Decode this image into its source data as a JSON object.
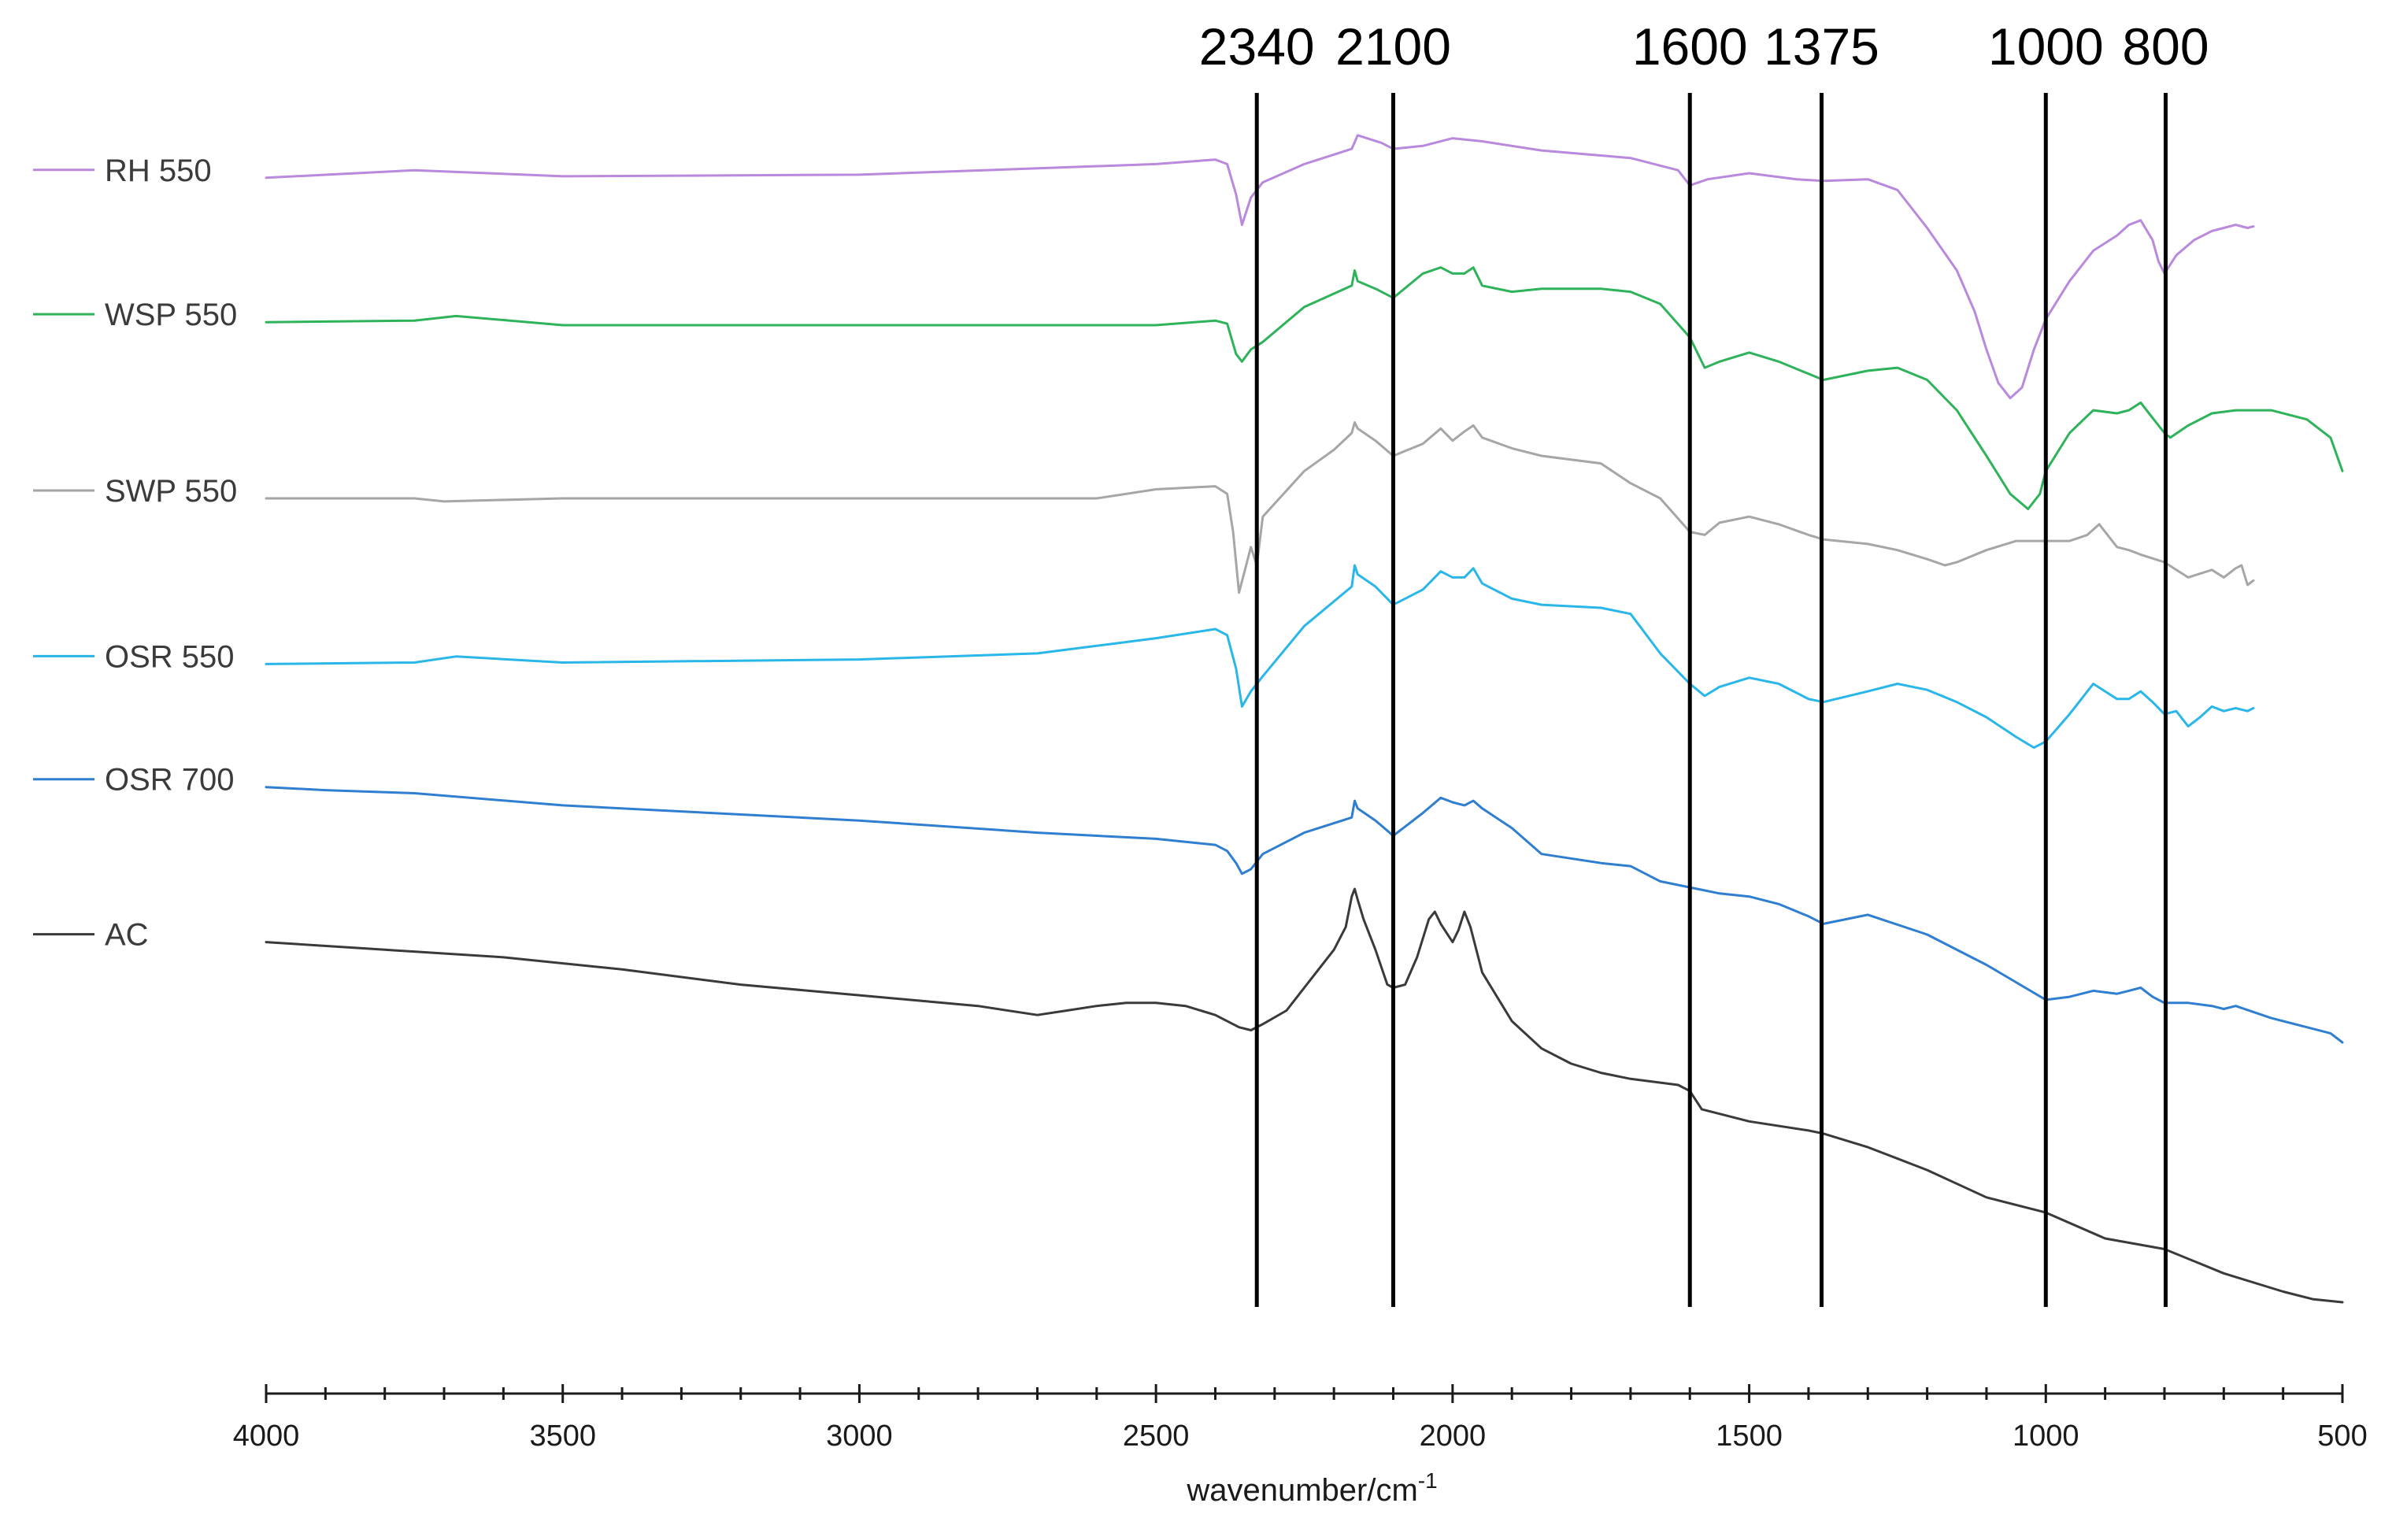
{
  "chart_data": {
    "type": "line",
    "title": "",
    "xlabel": "wavenumber/cm",
    "xlabel_superscript": "-1",
    "ylabel": "",
    "xlim": [
      4000,
      500
    ],
    "x_axis_reversed": true,
    "grid": false,
    "legend_position": "left",
    "x_ticks": [
      4000,
      3500,
      3000,
      2500,
      2000,
      1500,
      1000,
      500
    ],
    "x_tick_labels": [
      "4000",
      "3500",
      "3000",
      "2500",
      "2000",
      "1500",
      "1000",
      "500"
    ],
    "peak_markers": [
      {
        "label": "2340",
        "x": 2330
      },
      {
        "label": "2100",
        "x": 2100
      },
      {
        "label": "1600",
        "x": 1600
      },
      {
        "label": "1375",
        "x": 1378
      },
      {
        "label": "1000",
        "x": 1000
      },
      {
        "label": "800",
        "x": 798
      }
    ],
    "series": [
      {
        "name": "RH 550",
        "color": "#b889dd",
        "x": [
          4000,
          3750,
          3500,
          3000,
          2500,
          2400,
          2380,
          2365,
          2355,
          2340,
          2320,
          2250,
          2170,
          2160,
          2120,
          2100,
          2050,
          2000,
          1950,
          1850,
          1700,
          1620,
          1600,
          1570,
          1500,
          1420,
          1375,
          1300,
          1250,
          1200,
          1150,
          1120,
          1100,
          1080,
          1060,
          1040,
          1020,
          1000,
          960,
          920,
          880,
          860,
          840,
          820,
          810,
          800,
          780,
          750,
          720,
          700,
          680,
          660,
          650
        ],
        "y": [
          117,
          112,
          116,
          115,
          108,
          105,
          108,
          128,
          148,
          130,
          120,
          108,
          98,
          89,
          94,
          98,
          96,
          91,
          93,
          99,
          104,
          112,
          122,
          118,
          114,
          118,
          119,
          118,
          125,
          150,
          178,
          205,
          230,
          252,
          262,
          255,
          230,
          210,
          185,
          165,
          155,
          148,
          145,
          158,
          172,
          180,
          168,
          158,
          152,
          150,
          148,
          150,
          149
        ]
      },
      {
        "name": "WSP 550",
        "color": "#2eb35a",
        "x": [
          4000,
          3750,
          3680,
          3500,
          3000,
          2500,
          2400,
          2380,
          2365,
          2355,
          2340,
          2320,
          2250,
          2170,
          2165,
          2160,
          2130,
          2100,
          2050,
          2020,
          2000,
          1980,
          1965,
          1950,
          1900,
          1850,
          1750,
          1700,
          1650,
          1600,
          1575,
          1550,
          1500,
          1450,
          1400,
          1375,
          1300,
          1250,
          1200,
          1150,
          1100,
          1060,
          1030,
          1010,
          1000,
          960,
          920,
          880,
          860,
          840,
          820,
          800,
          790,
          760,
          720,
          680,
          620,
          560,
          520,
          500
        ],
        "y": [
          212,
          211,
          208,
          214,
          214,
          214,
          211,
          213,
          233,
          238,
          230,
          225,
          202,
          188,
          178,
          185,
          190,
          196,
          180,
          176,
          180,
          180,
          176,
          188,
          192,
          190,
          190,
          192,
          200,
          222,
          242,
          238,
          232,
          238,
          246,
          250,
          244,
          242,
          250,
          270,
          300,
          325,
          335,
          325,
          310,
          285,
          270,
          272,
          270,
          265,
          275,
          285,
          288,
          280,
          272,
          270,
          270,
          276,
          288,
          310
        ]
      },
      {
        "name": "SWP 550",
        "color": "#a6a6a6",
        "x": [
          4000,
          3750,
          3700,
          3500,
          3000,
          2600,
          2500,
          2400,
          2380,
          2370,
          2360,
          2350,
          2340,
          2330,
          2320,
          2250,
          2200,
          2170,
          2165,
          2160,
          2130,
          2100,
          2050,
          2020,
          2000,
          1980,
          1965,
          1950,
          1900,
          1850,
          1750,
          1700,
          1650,
          1600,
          1575,
          1550,
          1500,
          1450,
          1400,
          1375,
          1300,
          1250,
          1200,
          1170,
          1150,
          1100,
          1050,
          1000,
          960,
          930,
          910,
          880,
          860,
          840,
          800,
          780,
          760,
          720,
          700,
          680,
          670,
          660,
          650
        ],
        "y": [
          328,
          328,
          330,
          328,
          328,
          328,
          322,
          320,
          325,
          350,
          390,
          375,
          360,
          372,
          340,
          310,
          296,
          285,
          278,
          282,
          290,
          300,
          292,
          282,
          290,
          284,
          280,
          288,
          295,
          300,
          305,
          318,
          328,
          350,
          352,
          344,
          340,
          345,
          352,
          355,
          358,
          362,
          368,
          372,
          370,
          362,
          356,
          356,
          356,
          352,
          345,
          360,
          362,
          365,
          370,
          375,
          380,
          375,
          380,
          374,
          372,
          385,
          382
        ]
      },
      {
        "name": "OSR 550",
        "color": "#29b6e8",
        "x": [
          4000,
          3750,
          3680,
          3500,
          3000,
          2700,
          2600,
          2500,
          2400,
          2380,
          2365,
          2355,
          2340,
          2320,
          2250,
          2170,
          2165,
          2160,
          2130,
          2100,
          2050,
          2020,
          2000,
          1980,
          1965,
          1950,
          1900,
          1850,
          1750,
          1700,
          1650,
          1600,
          1575,
          1550,
          1500,
          1450,
          1400,
          1375,
          1300,
          1250,
          1200,
          1150,
          1100,
          1050,
          1020,
          1000,
          960,
          920,
          880,
          860,
          840,
          820,
          800,
          780,
          760,
          740,
          720,
          700,
          680,
          660,
          650
        ],
        "y": [
          437,
          436,
          432,
          436,
          434,
          430,
          425,
          420,
          414,
          418,
          440,
          465,
          455,
          445,
          412,
          386,
          372,
          378,
          386,
          398,
          388,
          376,
          380,
          380,
          374,
          384,
          394,
          398,
          400,
          404,
          430,
          450,
          458,
          452,
          446,
          450,
          460,
          462,
          455,
          450,
          454,
          462,
          472,
          485,
          492,
          488,
          470,
          450,
          460,
          460,
          455,
          462,
          470,
          468,
          478,
          472,
          465,
          468,
          466,
          468,
          466
        ]
      },
      {
        "name": "OSR 700",
        "color": "#2f7ed0",
        "x": [
          4000,
          3900,
          3750,
          3500,
          3000,
          2700,
          2500,
          2400,
          2380,
          2365,
          2355,
          2340,
          2320,
          2250,
          2170,
          2165,
          2160,
          2130,
          2100,
          2050,
          2020,
          2000,
          1980,
          1965,
          1950,
          1900,
          1850,
          1750,
          1700,
          1650,
          1600,
          1550,
          1500,
          1450,
          1400,
          1375,
          1300,
          1200,
          1100,
          1000,
          960,
          920,
          880,
          860,
          840,
          820,
          800,
          760,
          720,
          700,
          680,
          620,
          560,
          520,
          500
        ],
        "y": [
          518,
          520,
          522,
          530,
          540,
          548,
          552,
          556,
          560,
          568,
          575,
          572,
          562,
          548,
          538,
          527,
          532,
          540,
          550,
          535,
          525,
          528,
          530,
          527,
          532,
          545,
          562,
          568,
          570,
          580,
          584,
          588,
          590,
          595,
          603,
          608,
          602,
          615,
          635,
          658,
          656,
          652,
          654,
          652,
          650,
          656,
          660,
          660,
          662,
          664,
          662,
          670,
          676,
          680,
          686
        ]
      },
      {
        "name": "AC",
        "color": "#3a3a3a",
        "x": [
          4000,
          3800,
          3600,
          3400,
          3200,
          3000,
          2800,
          2700,
          2650,
          2600,
          2550,
          2500,
          2450,
          2400,
          2360,
          2340,
          2320,
          2280,
          2230,
          2200,
          2180,
          2170,
          2165,
          2160,
          2150,
          2130,
          2110,
          2100,
          2080,
          2060,
          2040,
          2030,
          2020,
          2000,
          1990,
          1980,
          1970,
          1960,
          1950,
          1900,
          1850,
          1800,
          1750,
          1700,
          1620,
          1600,
          1580,
          1500,
          1400,
          1375,
          1300,
          1200,
          1100,
          1000,
          900,
          800,
          700,
          600,
          550,
          500
        ],
        "y": [
          620,
          625,
          630,
          638,
          648,
          655,
          662,
          668,
          665,
          662,
          660,
          660,
          662,
          668,
          676,
          678,
          674,
          665,
          640,
          625,
          610,
          590,
          585,
          592,
          605,
          625,
          648,
          650,
          648,
          630,
          605,
          600,
          608,
          620,
          612,
          600,
          610,
          625,
          640,
          672,
          690,
          700,
          706,
          710,
          714,
          718,
          730,
          738,
          744,
          746,
          755,
          770,
          788,
          798,
          815,
          822,
          838,
          850,
          855,
          857
        ]
      }
    ]
  }
}
